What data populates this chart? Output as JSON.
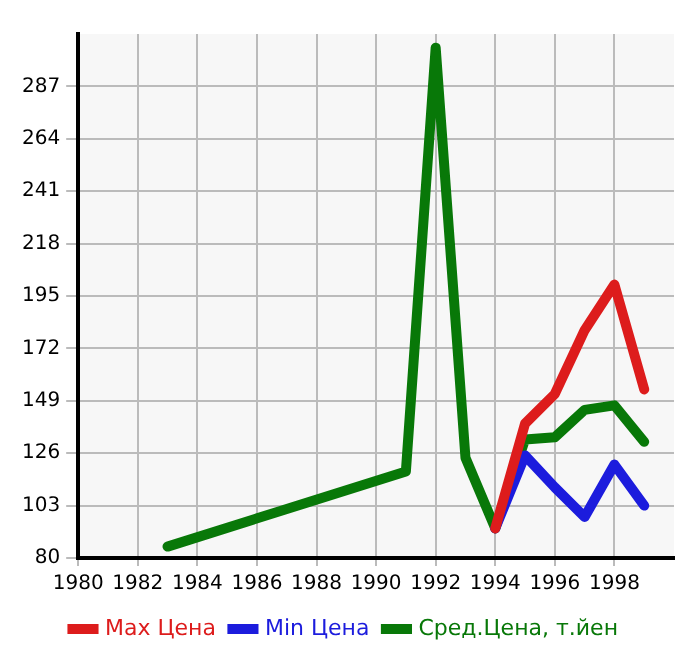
{
  "chart_data": {
    "type": "line",
    "xlim": [
      1980,
      2000
    ],
    "xticks": [
      1980,
      1982,
      1984,
      1986,
      1988,
      1990,
      1992,
      1994,
      1996,
      1998
    ],
    "ylim": [
      80,
      310
    ],
    "yticks": [
      80,
      103,
      126,
      149,
      172,
      195,
      218,
      241,
      264,
      287
    ],
    "grid": true,
    "legend": "bottom",
    "marker": "none",
    "line_style": "solid",
    "series": [
      {
        "name": "Max Цена",
        "color": "#dd1c1c",
        "x": [
          1994,
          1995,
          1996,
          1997,
          1998,
          1999
        ],
        "values": [
          93,
          139,
          152,
          180,
          200,
          154
        ]
      },
      {
        "name": "Min Цена",
        "color": "#1c1cdd",
        "x": [
          1994,
          1995,
          1996,
          1997,
          1998,
          1999
        ],
        "values": [
          93,
          125,
          111,
          98,
          121,
          103
        ]
      },
      {
        "name": "Сред.Цена, т.йен",
        "color": "#087808",
        "x": [
          1983,
          1991,
          1992,
          1993,
          1994,
          1995,
          1996,
          1997,
          1998,
          1999
        ],
        "values": [
          85,
          118,
          304,
          124,
          93,
          132,
          133,
          145,
          147,
          131
        ]
      }
    ]
  }
}
